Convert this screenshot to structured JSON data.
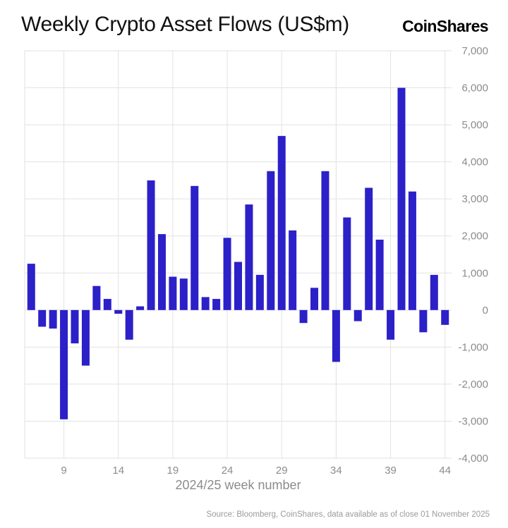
{
  "header": {
    "title": "Weekly Crypto Asset Flows (US$m)",
    "logo": "CoinShares"
  },
  "chart_data": {
    "type": "bar",
    "title": "Weekly Crypto Asset Flows (US$m)",
    "xlabel": "2024/25 week number",
    "ylabel": "",
    "x": [
      6,
      7,
      8,
      9,
      10,
      11,
      12,
      13,
      14,
      15,
      16,
      17,
      18,
      19,
      20,
      21,
      22,
      23,
      24,
      25,
      26,
      27,
      28,
      29,
      30,
      31,
      32,
      33,
      34,
      35,
      36,
      37,
      38,
      39,
      40,
      41,
      42,
      43,
      44
    ],
    "values": [
      1250,
      -450,
      -500,
      -2950,
      -900,
      -1500,
      650,
      300,
      -100,
      -800,
      100,
      3500,
      2050,
      900,
      850,
      3350,
      350,
      300,
      1950,
      1300,
      2850,
      950,
      3750,
      4700,
      2150,
      -350,
      600,
      3750,
      -1400,
      2500,
      -300,
      3300,
      1900,
      -800,
      6000,
      3200,
      -600,
      950,
      -400
    ],
    "x_ticks": [
      9,
      14,
      19,
      24,
      29,
      34,
      39,
      44
    ],
    "y_ticks": [
      -4000,
      -3000,
      -2000,
      -1000,
      0,
      1000,
      2000,
      3000,
      4000,
      5000,
      6000,
      7000
    ],
    "xlim": [
      5.4,
      44.6
    ],
    "ylim": [
      -4000,
      7000
    ],
    "grid": true,
    "legend": "none",
    "bar_color": "#2c20c8",
    "grid_color": "#e2e2e2",
    "axis_label_color": "#8c8c8c"
  },
  "footer": {
    "source": "Source: Bloomberg, CoinShares, data available as of close 01 November 2025"
  }
}
